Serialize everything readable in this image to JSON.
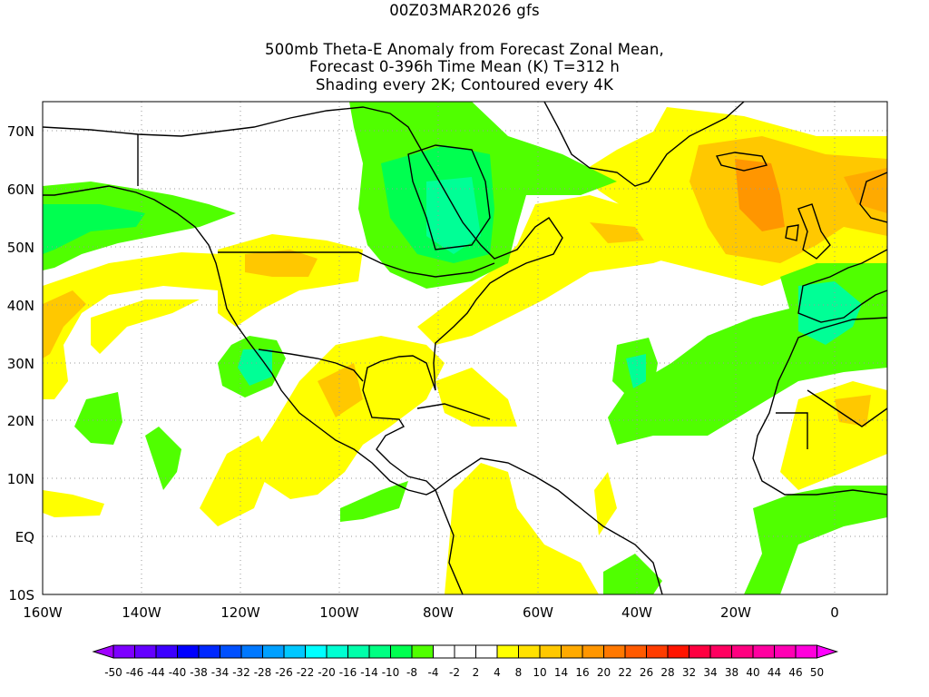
{
  "title": {
    "line1": "00Z03MAR2026 gfs",
    "line2": "500mb Theta-E Anomaly from Forecast Zonal Mean,",
    "line3": "Forecast 0-396h Time Mean (K) T=312 h",
    "line4": "Shading every 2K; Contoured every 4K"
  },
  "axes": {
    "lon_labels": [
      "160W",
      "140W",
      "120W",
      "100W",
      "80W",
      "60W",
      "40W",
      "20W",
      "0"
    ],
    "lat_labels": [
      "70N",
      "60N",
      "50N",
      "40N",
      "30N",
      "20N",
      "10N",
      "EQ",
      "10S"
    ]
  },
  "colorbar": {
    "labels": [
      "-50",
      "-46",
      "-44",
      "-40",
      "-38",
      "-34",
      "-32",
      "-28",
      "-26",
      "-22",
      "-20",
      "-16",
      "-14",
      "-10",
      "-8",
      "-4",
      "-2",
      "2",
      "4",
      "8",
      "10",
      "14",
      "16",
      "20",
      "22",
      "26",
      "28",
      "32",
      "34",
      "38",
      "40",
      "44",
      "46",
      "50"
    ],
    "low_color": "#a000ff",
    "high_color": "#ff00ff",
    "colors": [
      "#7d00ff",
      "#6400ff",
      "#3c00ff",
      "#0000ff",
      "#0028ff",
      "#0050ff",
      "#0078ff",
      "#00a0ff",
      "#00c8ff",
      "#00ffff",
      "#00ffd2",
      "#00ffaa",
      "#00ff82",
      "#00ff50",
      "#50ff00",
      "#ffffff",
      "#ffffff",
      "#ffffff",
      "#ffff00",
      "#ffe100",
      "#ffc800",
      "#ffaa00",
      "#ff9600",
      "#ff7800",
      "#ff5a00",
      "#ff3c00",
      "#ff1400",
      "#ff0040",
      "#ff0060",
      "#ff0080",
      "#ff00a0",
      "#ff00b4",
      "#ff00dc"
    ]
  },
  "field_colors": {
    "green": "#50ff00",
    "green2": "#00ff50",
    "green3": "#00ff96",
    "yellow": "#ffff00",
    "gold": "#ffe100",
    "amber": "#ffc800",
    "orange": "#ffaa00",
    "orange2": "#ff9600"
  }
}
